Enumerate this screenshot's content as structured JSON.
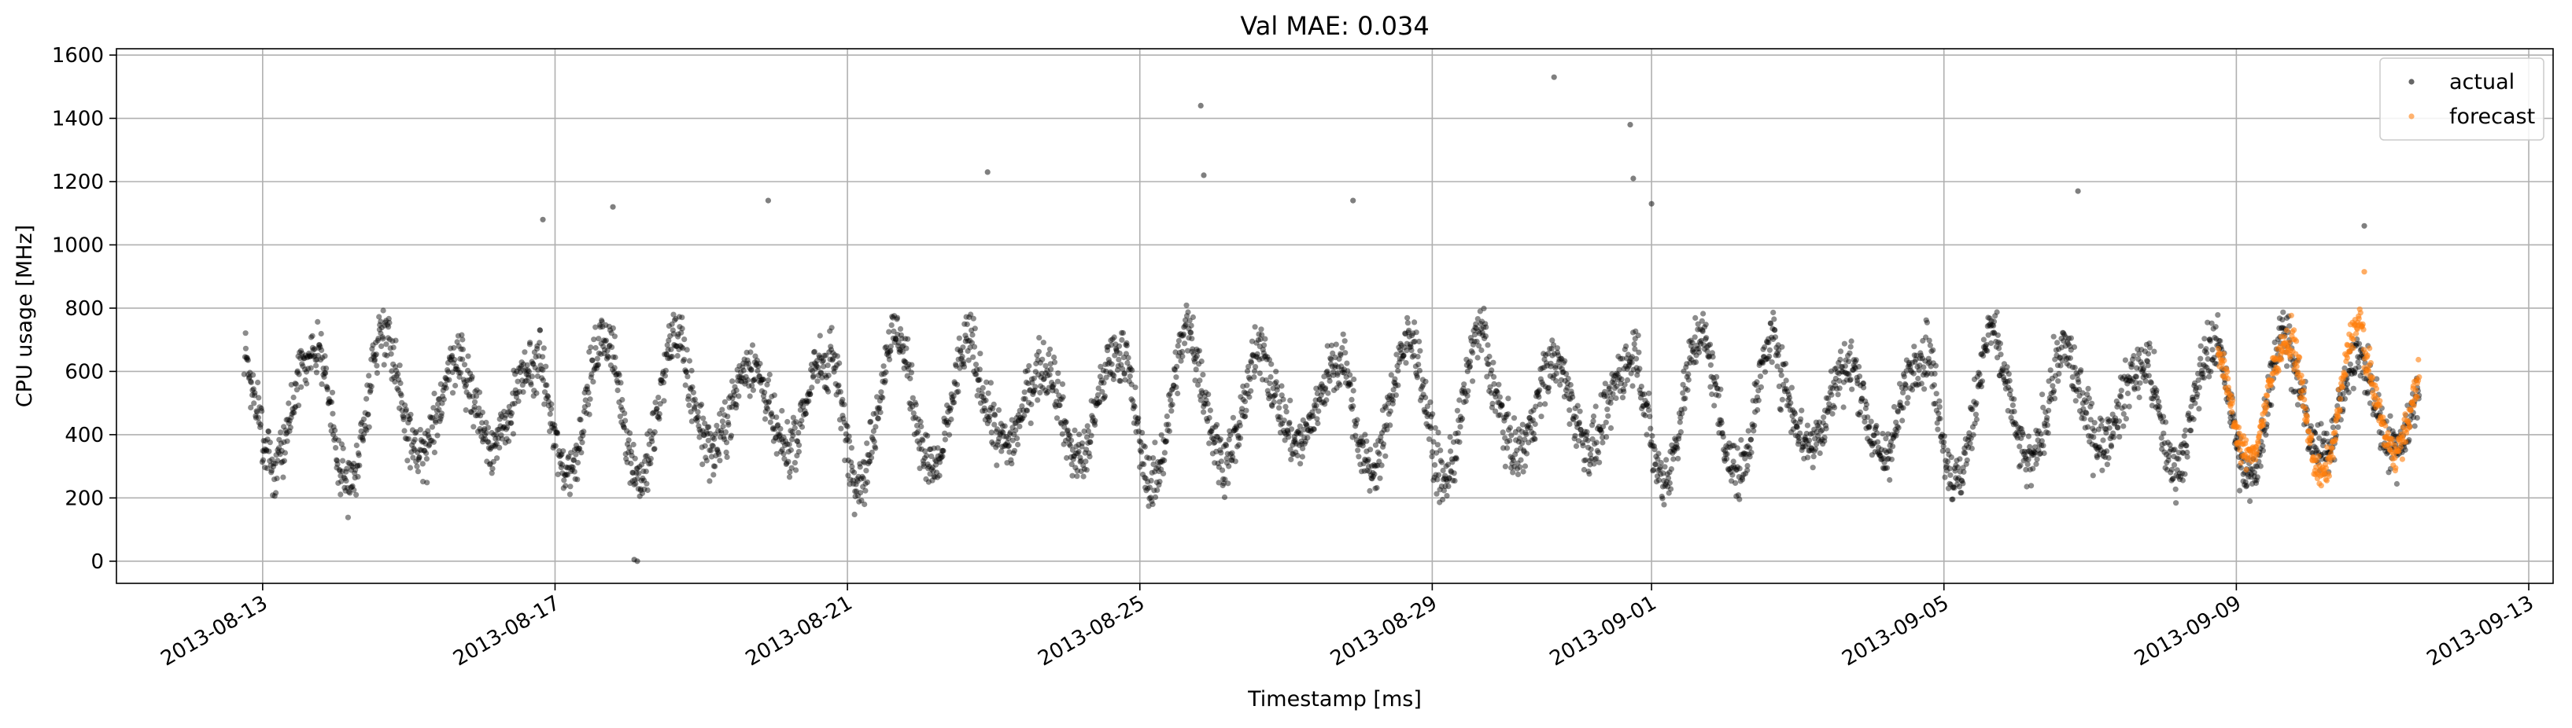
{
  "chart_data": {
    "type": "scatter",
    "title": "Val MAE: 0.034",
    "xlabel": "Timestamp [ms]",
    "ylabel": "CPU usage [MHz]",
    "xlim": [
      "2013-08-11",
      "2013-09-13T08:00"
    ],
    "ylim": [
      -70,
      1620
    ],
    "x_ticks": [
      "2013-08-13",
      "2013-08-17",
      "2013-08-21",
      "2013-08-25",
      "2013-08-29",
      "2013-09-01",
      "2013-09-05",
      "2013-09-09",
      "2013-09-13"
    ],
    "y_ticks": [
      0,
      200,
      400,
      600,
      800,
      1000,
      1200,
      1400,
      1600
    ],
    "grid": true,
    "legend_position": "top-right",
    "series": [
      {
        "name": "actual",
        "color": "#000000",
        "marker": "circle",
        "start": "2013-08-12T18:00",
        "end": "2013-09-11T12:00",
        "daily_cycle": {
          "low": 280,
          "high": 700,
          "peak_hour": 16,
          "noise": 80
        },
        "outliers": [
          {
            "x": "2013-08-16T20:00",
            "y": 1080
          },
          {
            "x": "2013-08-17T19:00",
            "y": 1120
          },
          {
            "x": "2013-08-18T02:00",
            "y": 5
          },
          {
            "x": "2013-08-18T03:00",
            "y": 0
          },
          {
            "x": "2013-08-19T22:00",
            "y": 1140
          },
          {
            "x": "2013-08-22T22:00",
            "y": 1230
          },
          {
            "x": "2013-08-25T20:00",
            "y": 1440
          },
          {
            "x": "2013-08-25T21:00",
            "y": 1220
          },
          {
            "x": "2013-08-27T22:00",
            "y": 1140
          },
          {
            "x": "2013-08-30T16:00",
            "y": 1530
          },
          {
            "x": "2013-08-31T17:00",
            "y": 1380
          },
          {
            "x": "2013-08-31T18:00",
            "y": 1210
          },
          {
            "x": "2013-09-01T00:00",
            "y": 1130
          },
          {
            "x": "2013-09-06T20:00",
            "y": 1170
          },
          {
            "x": "2013-09-10T18:00",
            "y": 1060
          }
        ]
      },
      {
        "name": "forecast",
        "color": "#ff7f0e",
        "marker": "circle",
        "start": "2013-09-08T18:00",
        "end": "2013-09-11T12:00",
        "daily_cycle": {
          "low": 300,
          "high": 720,
          "peak_hour": 16,
          "noise": 45
        },
        "outliers": [
          {
            "x": "2013-09-10T18:00",
            "y": 915
          }
        ]
      }
    ]
  }
}
